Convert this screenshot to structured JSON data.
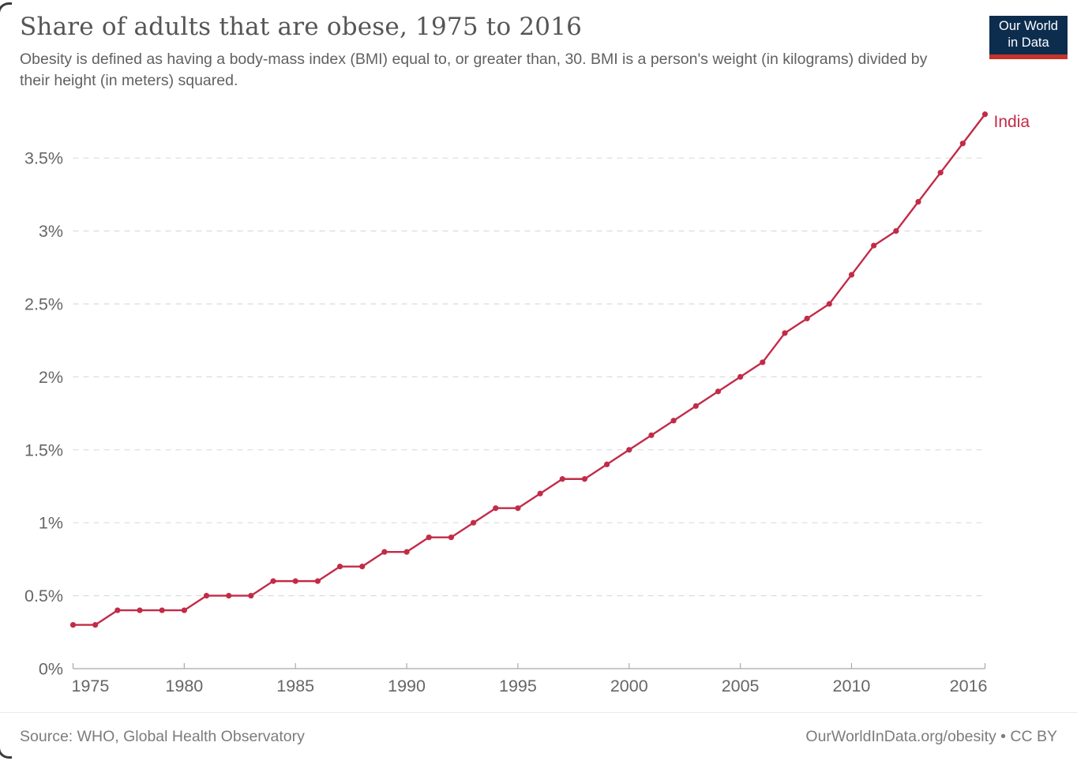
{
  "header": {
    "title": "Share of adults that are obese, 1975 to 2016",
    "subtitle": "Obesity is defined as having a body-mass index (BMI) equal to, or greater than, 30. BMI is a person's weight (in kilograms) divided by their height (in meters) squared.",
    "logo": {
      "line1": "Our World",
      "line2": "in Data",
      "background_color": "#0d2d4f",
      "stripe_color": "#c5342b"
    }
  },
  "chart_data": {
    "type": "line",
    "title": "Share of adults that are obese, 1975 to 2016",
    "xlabel": "",
    "ylabel": "",
    "unit": "%",
    "xlim": [
      1975,
      2016
    ],
    "ylim": [
      0,
      3.8
    ],
    "grid": "horizontal-dashed",
    "legend_position": "end-of-line-label",
    "x_ticks": [
      {
        "value": 1975,
        "label": "1975",
        "anchor": "start"
      },
      {
        "value": 1980,
        "label": "1980",
        "anchor": "middle"
      },
      {
        "value": 1985,
        "label": "1985",
        "anchor": "middle"
      },
      {
        "value": 1990,
        "label": "1990",
        "anchor": "middle"
      },
      {
        "value": 1995,
        "label": "1995",
        "anchor": "middle"
      },
      {
        "value": 2000,
        "label": "2000",
        "anchor": "middle"
      },
      {
        "value": 2005,
        "label": "2005",
        "anchor": "middle"
      },
      {
        "value": 2010,
        "label": "2010",
        "anchor": "middle"
      },
      {
        "value": 2016,
        "label": "2016",
        "anchor": "end"
      }
    ],
    "y_ticks": [
      {
        "value": 0,
        "label": "0%"
      },
      {
        "value": 0.5,
        "label": "0.5%"
      },
      {
        "value": 1,
        "label": "1%"
      },
      {
        "value": 1.5,
        "label": "1.5%"
      },
      {
        "value": 2,
        "label": "2%"
      },
      {
        "value": 2.5,
        "label": "2.5%"
      },
      {
        "value": 3,
        "label": "3%"
      },
      {
        "value": 3.5,
        "label": "3.5%"
      }
    ],
    "series": [
      {
        "name": "India",
        "color": "#c22b47",
        "x": [
          1975,
          1976,
          1977,
          1978,
          1979,
          1980,
          1981,
          1982,
          1983,
          1984,
          1985,
          1986,
          1987,
          1988,
          1989,
          1990,
          1991,
          1992,
          1993,
          1994,
          1995,
          1996,
          1997,
          1998,
          1999,
          2000,
          2001,
          2002,
          2003,
          2004,
          2005,
          2006,
          2007,
          2008,
          2009,
          2010,
          2011,
          2012,
          2013,
          2014,
          2015,
          2016
        ],
        "values": [
          0.3,
          0.3,
          0.4,
          0.4,
          0.4,
          0.4,
          0.5,
          0.5,
          0.5,
          0.6,
          0.6,
          0.6,
          0.7,
          0.7,
          0.8,
          0.8,
          0.9,
          0.9,
          1.0,
          1.1,
          1.1,
          1.2,
          1.3,
          1.3,
          1.4,
          1.5,
          1.6,
          1.7,
          1.8,
          1.9,
          2.0,
          2.1,
          2.3,
          2.4,
          2.5,
          2.7,
          2.9,
          3.0,
          3.2,
          3.4,
          3.6,
          3.8
        ]
      }
    ]
  },
  "footer": {
    "source": "Source: WHO, Global Health Observatory",
    "credit": "OurWorldInData.org/obesity • CC BY"
  }
}
